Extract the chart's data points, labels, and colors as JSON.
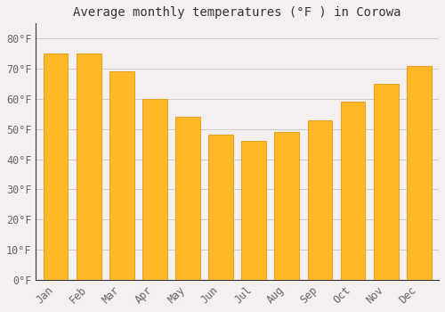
{
  "title": "Average monthly temperatures (°F ) in Corowa",
  "months": [
    "Jan",
    "Feb",
    "Mar",
    "Apr",
    "May",
    "Jun",
    "Jul",
    "Aug",
    "Sep",
    "Oct",
    "Nov",
    "Dec"
  ],
  "values": [
    75,
    75,
    69,
    60,
    54,
    48,
    46,
    49,
    53,
    59,
    65,
    71
  ],
  "bar_color": "#FDB827",
  "bar_edge_color": "#E8970A",
  "background_color": "#F5F0F0",
  "plot_bg_color": "#F5F0F0",
  "grid_color": "#CCCCCC",
  "yticks": [
    0,
    10,
    20,
    30,
    40,
    50,
    60,
    70,
    80
  ],
  "ytick_labels": [
    "0°F",
    "10°F",
    "20°F",
    "30°F",
    "40°F",
    "50°F",
    "60°F",
    "70°F",
    "80°F"
  ],
  "ylim": [
    0,
    85
  ],
  "title_fontsize": 10,
  "tick_fontsize": 8.5,
  "tick_color": "#666666",
  "title_color": "#333333",
  "font_family": "monospace",
  "spine_color": "#333333"
}
